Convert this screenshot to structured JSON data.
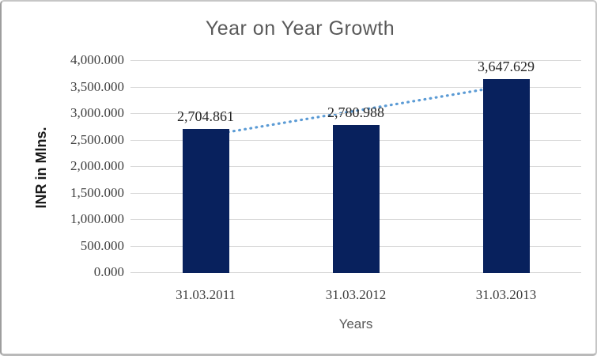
{
  "window": {
    "background": "#ffffff",
    "border_color": "#c6c6c6"
  },
  "chart_data": {
    "type": "bar",
    "title": "Year on Year Growth",
    "xlabel": "Years",
    "ylabel": "INR in Mlns.",
    "categories": [
      "31.03.2011",
      "31.03.2012",
      "31.03.2013"
    ],
    "values": [
      2704.861,
      2780.988,
      3647.629
    ],
    "data_labels": [
      "2,704.861",
      "2,780.988",
      "3,647.629"
    ],
    "ylim": [
      0,
      4000
    ],
    "ytick_step": 500,
    "ytick_labels": [
      "0.000",
      "500.000",
      "1,000.000",
      "1,500.000",
      "2,000.000",
      "2,500.000",
      "3,000.000",
      "3,500.000",
      "4,000.000"
    ],
    "grid": true,
    "legend": "none",
    "bar_color": "#08215d",
    "gridline_color": "#d9d9d9",
    "trendline": {
      "type": "linear",
      "style": "dotted",
      "color": "#5b9bd5"
    }
  }
}
